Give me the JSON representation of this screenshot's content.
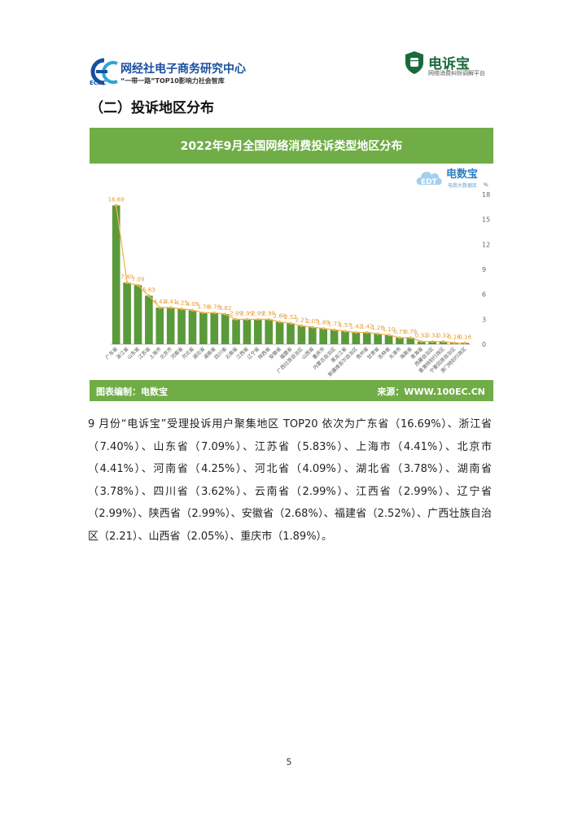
{
  "header": {
    "org_name": "网经社电子商务研究中心",
    "org_abbr": "ECRC",
    "org_slogan": "“一带一路”TOP10影响力社会智库",
    "platform_name": "电诉宝",
    "platform_subtitle": "网络消费纠纷调解平台"
  },
  "section_title": "（二）投诉地区分布",
  "chart_banner": {
    "title": "2022年9月全国网络消费投诉类型地区分布",
    "watermark_name": "电数宝",
    "watermark_sub": "电商大数据库",
    "footer_left": "图表编制：电数宝",
    "footer_right": "来源：WWW.100EC.CN"
  },
  "chart_data": {
    "type": "bar",
    "title": "2022年9月全国网络消费投诉类型地区分布",
    "yunit": "%",
    "ylim": [
      0,
      18
    ],
    "yticks": [
      0,
      3,
      6,
      9,
      12,
      15,
      18
    ],
    "ylabels": [
      "0",
      "3",
      "6",
      "9",
      "12",
      "15",
      "18"
    ],
    "categories": [
      "广东省",
      "浙江省",
      "山东省",
      "江苏省",
      "上海市",
      "北京市",
      "河南省",
      "河北省",
      "湖北省",
      "湖南省",
      "四川省",
      "云南省",
      "江西省",
      "辽宁省",
      "陕西省",
      "安徽省",
      "福建省",
      "广西壮族自治区",
      "山西省",
      "重庆市",
      "内蒙古自治区",
      "黑龙江省",
      "新疆维吾尔自治区",
      "贵州省",
      "甘肃省",
      "吉林省",
      "天津市",
      "海南省",
      "青海省",
      "西藏自治区",
      "香港特别行政区",
      "宁夏回族自治区",
      "澳门特别行政区"
    ],
    "values": [
      16.69,
      7.4,
      7.09,
      5.83,
      4.41,
      4.41,
      4.25,
      4.09,
      3.78,
      3.78,
      3.62,
      2.99,
      2.99,
      2.99,
      2.99,
      2.68,
      2.52,
      2.21,
      2.05,
      1.89,
      1.73,
      1.57,
      1.42,
      1.42,
      1.26,
      1.1,
      0.79,
      0.79,
      0.32,
      0.32,
      0.32,
      0.16,
      0.16
    ],
    "labels": [
      "16.69",
      "7.40",
      "7.09",
      "5.83",
      "4.41",
      "4.41",
      "4.25",
      "4.09",
      "3.78",
      "3.78",
      "3.62",
      "2.99",
      "2.99",
      "2.99",
      "2.99",
      "2.68",
      "2.52",
      "2.21",
      "2.05",
      "1.89",
      "1.73",
      "1.57",
      "1.42",
      "1.42",
      "1.26",
      "1.10",
      "0.79",
      "0.79",
      "0.32",
      "0.32",
      "0.32",
      "0.16",
      "0.16"
    ],
    "bar_color": "#5a9a3a",
    "line_color": "#f4b24a",
    "grid": false
  },
  "paragraph": [
    "9 月份“电诉宝”受理投诉用户聚集地区 TOP20 依次为广东省（16.69%）、浙江省（7.40%）、山东省（7.09%）、江苏省（5.83%）、上海市（4.41%）、北京市（4.41%）、河南省（4.25%）、河北省（4.09%）、湖北省（3.78%）、湖南省（3.78%）、四川省（3.62%）、云南省（2.99%）、江西省（2.99%）、辽宁省（2.99%）、陕西省（2.99%）、安徽省（2.68%）、福建省（2.52%）、广西壮族自治区（2.21）、山西省（2.05%）、重庆市（1.89%）。"
  ],
  "page_number": "5"
}
